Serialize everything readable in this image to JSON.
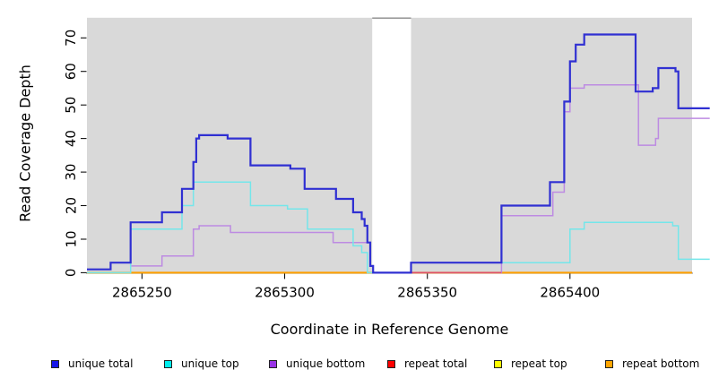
{
  "chart_data": {
    "type": "step-line",
    "title": "",
    "xlabel": "Coordinate in Reference Genome",
    "ylabel": "Read Coverage Depth",
    "x_ticks": [
      2865250,
      2865300,
      2865350,
      2865400
    ],
    "y_ticks": [
      0,
      10,
      20,
      30,
      40,
      50,
      60,
      70
    ],
    "xlim": [
      2865230.7,
      2865442.8
    ],
    "ylim": [
      0,
      76
    ],
    "grid": false,
    "panel_bg": "#d9d9d9",
    "coverage_regions": [
      [
        2865230.7,
        2865330.7
      ],
      [
        2865344.3,
        2865442.8
      ]
    ],
    "no_data_gap": [
      2865330.7,
      2865344.3
    ],
    "gap_border_color": "#8a8a8a",
    "axis_color": "#111111",
    "series": [
      {
        "name": "repeat top",
        "color": "#ffff00",
        "width": 1.5,
        "note": "value 0 everywhere, hidden under repeat bottom",
        "segments": [
          [
            [
              2865230.7,
              0
            ],
            [
              2865330.7,
              0
            ]
          ],
          [
            [
              2865344.3,
              0
            ],
            [
              2865442.8,
              0
            ]
          ]
        ]
      },
      {
        "name": "repeat bottom",
        "color": "#ff9f00",
        "width": 2,
        "segments": [
          [
            [
              2865230.7,
              0
            ],
            [
              2865330.7,
              0
            ]
          ],
          [
            [
              2865344.3,
              0
            ],
            [
              2865442.8,
              0
            ]
          ]
        ]
      },
      {
        "name": "unique bottom",
        "color": "#bd8be2",
        "width": 1.5,
        "segments": [
          [
            [
              2865230.7,
              1
            ],
            [
              2865239,
              3
            ],
            [
              2865246,
              2
            ],
            [
              2865257,
              5
            ],
            [
              2865268,
              13
            ],
            [
              2865270,
              14
            ],
            [
              2865281,
              12
            ],
            [
              2865317,
              9
            ],
            [
              2865330,
              2
            ],
            [
              2865331,
              0
            ],
            [
              2865376,
              17
            ],
            [
              2865394,
              24
            ],
            [
              2865398,
              48
            ],
            [
              2865400,
              55
            ],
            [
              2865405,
              56
            ],
            [
              2865424,
              38
            ],
            [
              2865430,
              40
            ],
            [
              2865431,
              46
            ],
            [
              2865449,
              46
            ]
          ]
        ]
      },
      {
        "name": "repeat total",
        "color": "#e0506a",
        "width": 1.5,
        "note": "value 0, visible only between gap edge and 2865376",
        "segments": [
          [
            [
              2865344.3,
              0
            ],
            [
              2865376,
              0
            ]
          ]
        ]
      },
      {
        "name": "unique top",
        "color": "#74e6ea",
        "width": 1.5,
        "segments": [
          [
            [
              2865230.7,
              0
            ],
            [
              2865246,
              13
            ],
            [
              2865264,
              20
            ],
            [
              2865268,
              27
            ],
            [
              2865288,
              20
            ],
            [
              2865301,
              19
            ],
            [
              2865308,
              13
            ],
            [
              2865324,
              8
            ],
            [
              2865327,
              6
            ],
            [
              2865329,
              0
            ],
            [
              2865344.3,
              3
            ],
            [
              2865400,
              13
            ],
            [
              2865405,
              15
            ],
            [
              2865436,
              14
            ],
            [
              2865438,
              4
            ],
            [
              2865449,
              4
            ]
          ]
        ]
      },
      {
        "name": "unique total",
        "color": "#3030d2",
        "width": 2.2,
        "segments": [
          [
            [
              2865230.7,
              1
            ],
            [
              2865239,
              3
            ],
            [
              2865246,
              15
            ],
            [
              2865257,
              18
            ],
            [
              2865264,
              25
            ],
            [
              2865268,
              33
            ],
            [
              2865269,
              40
            ],
            [
              2865270,
              41
            ],
            [
              2865280,
              40
            ],
            [
              2865288,
              32
            ],
            [
              2865302,
              31
            ],
            [
              2865307,
              25
            ],
            [
              2865318,
              22
            ],
            [
              2865324,
              18
            ],
            [
              2865327,
              16
            ],
            [
              2865328,
              14
            ],
            [
              2865329,
              9
            ],
            [
              2865330,
              2
            ],
            [
              2865331,
              0
            ],
            [
              2865344.3,
              3
            ],
            [
              2865376,
              20
            ],
            [
              2865393,
              27
            ],
            [
              2865398,
              51
            ],
            [
              2865400,
              63
            ],
            [
              2865402,
              68
            ],
            [
              2865405,
              71
            ],
            [
              2865423,
              54
            ],
            [
              2865429,
              55
            ],
            [
              2865431,
              61
            ],
            [
              2865437,
              60
            ],
            [
              2865438,
              49
            ],
            [
              2865449,
              49
            ]
          ]
        ]
      }
    ],
    "legend": [
      {
        "label": "unique total",
        "color": "#1414e8"
      },
      {
        "label": "unique top",
        "color": "#00eeee"
      },
      {
        "label": "unique bottom",
        "color": "#9933e6"
      },
      {
        "label": "repeat total",
        "color": "#ff0000"
      },
      {
        "label": "repeat top",
        "color": "#ffff00"
      },
      {
        "label": "repeat bottom",
        "color": "#ffa500"
      }
    ]
  }
}
